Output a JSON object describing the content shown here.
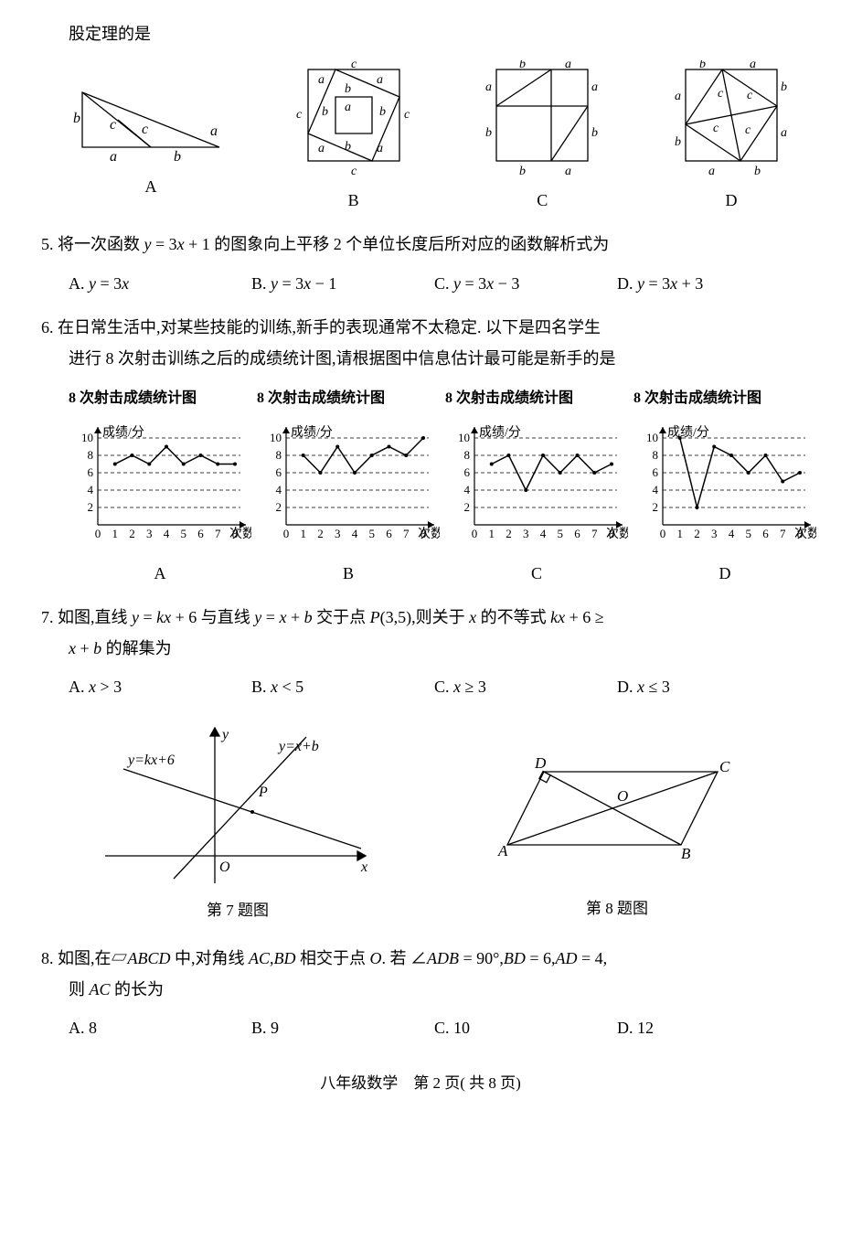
{
  "frag_top": "股定理的是",
  "geo_row": {
    "labels": [
      "A",
      "B",
      "C",
      "D"
    ]
  },
  "q5": {
    "num": "5.",
    "text": "将一次函数 y = 3x + 1 的图象向上平移 2 个单位长度后所对应的函数解析式为",
    "opts": {
      "A": "A. y = 3x",
      "B": "B. y = 3x − 1",
      "C": "C. y = 3x − 3",
      "D": "D. y = 3x + 3"
    }
  },
  "q6": {
    "num": "6.",
    "line1": "在日常生活中,对某些技能的训练,新手的表现通常不太稳定. 以下是四名学生",
    "line2": "进行 8 次射击训练之后的成绩统计图,请根据图中信息估计最可能是新手的是",
    "chart_title": "8 次射击成绩统计图",
    "ylabel": "成绩/分",
    "xlabel": "次数",
    "xticks": [
      "0",
      "1",
      "2",
      "3",
      "4",
      "5",
      "6",
      "7",
      "8"
    ],
    "yticks": [
      "2",
      "4",
      "6",
      "8",
      "10"
    ],
    "series": {
      "A": [
        7,
        8,
        7,
        9,
        7,
        8,
        7,
        7
      ],
      "B": [
        8,
        6,
        9,
        6,
        8,
        9,
        8,
        10
      ],
      "C": [
        7,
        8,
        4,
        8,
        6,
        8,
        6,
        7
      ],
      "D": [
        10,
        2,
        9,
        8,
        6,
        8,
        5,
        6
      ]
    },
    "labels": [
      "A",
      "B",
      "C",
      "D"
    ]
  },
  "q7": {
    "num": "7.",
    "line1": "如图,直线 y = kx + 6 与直线 y = x + b 交于点 P(3,5),则关于 x 的不等式 kx + 6 ≥",
    "line2": "x + b 的解集为",
    "opts": {
      "A": "A. x > 3",
      "B": "B. x < 5",
      "C": "C. x ≥ 3",
      "D": "D. x ≤ 3"
    },
    "fig_caption": "第 7 题图",
    "fig_labels": {
      "l1": "y=kx+6",
      "l2": "y=x+b",
      "P": "P",
      "O": "O",
      "x": "x",
      "y": "y"
    }
  },
  "q8": {
    "num": "8.",
    "line1": "如图,在▱ABCD 中,对角线 AC,BD 相交于点 O. 若 ∠ADB = 90°,BD = 6,AD = 4,",
    "line2": "则 AC 的长为",
    "opts": {
      "A": "A. 8",
      "B": "B. 9",
      "C": "C. 10",
      "D": "D. 12"
    },
    "fig_caption": "第 8 题图",
    "fig_labels": {
      "A": "A",
      "B": "B",
      "C": "C",
      "D": "D",
      "O": "O"
    }
  },
  "footer": "八年级数学　第 2 页( 共 8 页)",
  "style": {
    "text_color": "#000000",
    "bg": "#ffffff",
    "stroke": "#000000",
    "grid_dash": "4 3",
    "font_serif": "Times New Roman"
  }
}
